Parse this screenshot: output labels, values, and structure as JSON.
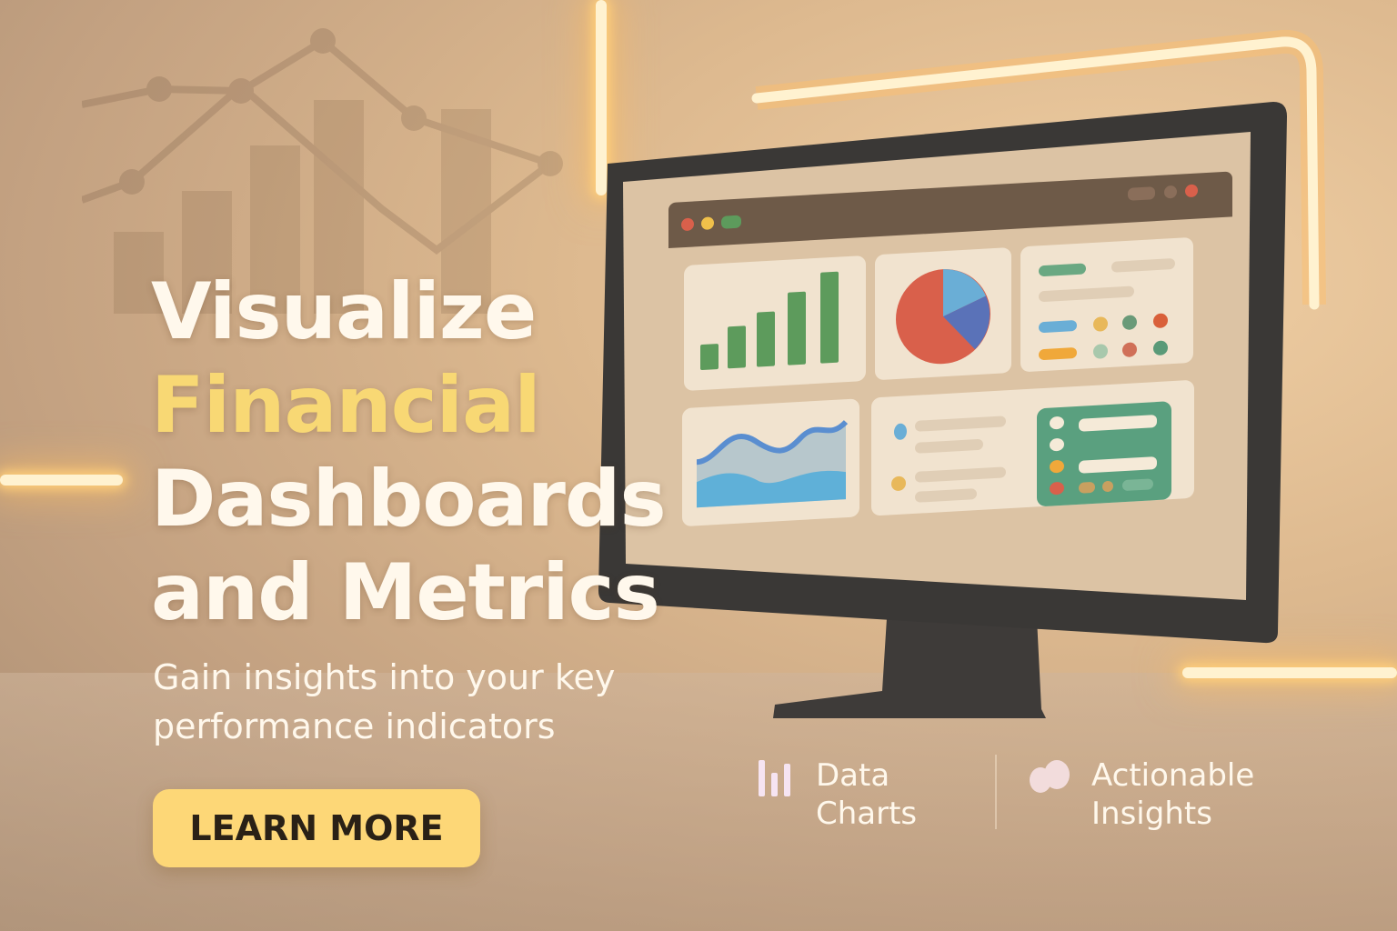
{
  "hero": {
    "headline_line1": "Visualize",
    "headline_line2": "Financial",
    "headline_line3": "Dashboards",
    "headline_line4": "and Metrics",
    "subtitle_line1": "Gain insights into your key",
    "subtitle_line2": "performance indicators",
    "cta_label": "LEARN MORE"
  },
  "features": [
    {
      "icon": "bar-chart-icon",
      "line1": "Data",
      "line2": "Charts"
    },
    {
      "icon": "blob-insights-icon",
      "line1": "Actionable",
      "line2": "Insights"
    }
  ],
  "colors": {
    "accent_yellow": "#f8d874",
    "button": "#fdd777",
    "text_light": "#fff8ec",
    "bar_green": "#5d9b5c",
    "pie_red": "#d9604b",
    "pie_lightblue": "#6aaed6",
    "pie_blue": "#5a72b8",
    "panel_green": "#5aa07f"
  }
}
